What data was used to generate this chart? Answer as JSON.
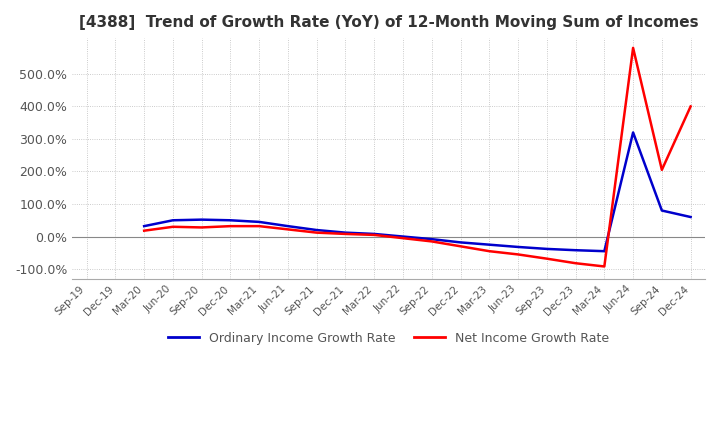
{
  "title": "[4388]  Trend of Growth Rate (YoY) of 12-Month Moving Sum of Incomes",
  "legend": [
    "Ordinary Income Growth Rate",
    "Net Income Growth Rate"
  ],
  "line_colors": [
    "#0000cc",
    "#ff0000"
  ],
  "background_color": "#ffffff",
  "grid_color": "#bbbbbb",
  "ylim": [
    -130,
    610
  ],
  "yticks": [
    -100,
    0,
    100,
    200,
    300,
    400,
    500
  ],
  "ytick_labels": [
    "-100.0%",
    "0.0%",
    "100.0%",
    "200.0%",
    "300.0%",
    "400.0%",
    "500.0%"
  ],
  "dates_str": [
    "Sep-19",
    "Dec-19",
    "Mar-20",
    "Jun-20",
    "Sep-20",
    "Dec-20",
    "Mar-21",
    "Jun-21",
    "Sep-21",
    "Dec-21",
    "Mar-22",
    "Jun-22",
    "Sep-22",
    "Dec-22",
    "Mar-23",
    "Jun-23",
    "Sep-23",
    "Dec-23",
    "Mar-24",
    "Jun-24",
    "Sep-24",
    "Dec-24"
  ],
  "ordinary_data": [
    null,
    null,
    32,
    50,
    52,
    50,
    45,
    32,
    20,
    12,
    8,
    0,
    -8,
    -18,
    -25,
    -32,
    -38,
    -42,
    -45,
    320,
    80,
    60
  ],
  "net_data": [
    null,
    null,
    18,
    30,
    28,
    32,
    32,
    22,
    12,
    8,
    5,
    -5,
    -15,
    -30,
    -45,
    -55,
    -68,
    -82,
    -92,
    580,
    205,
    400
  ]
}
